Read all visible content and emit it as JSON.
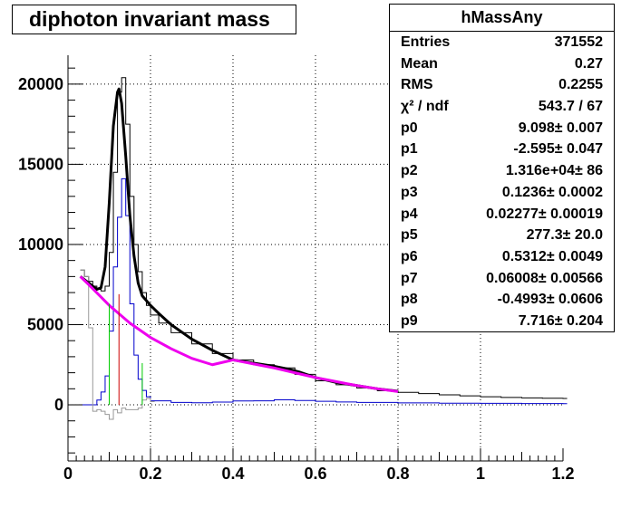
{
  "title": "diphoton invariant mass",
  "stats": {
    "name": "hMassAny",
    "rows": [
      {
        "label": "Entries",
        "value": "371552"
      },
      {
        "label": "Mean",
        "value": "0.27"
      },
      {
        "label": "RMS",
        "value": "0.2255"
      },
      {
        "label": "χ² / ndf",
        "value": "543.7 / 67"
      },
      {
        "label": "p0",
        "value": "9.098± 0.007"
      },
      {
        "label": "p1",
        "value": "-2.595± 0.047"
      },
      {
        "label": "p2",
        "value": "1.316e+04± 86"
      },
      {
        "label": "p3",
        "value": "0.1236± 0.0002"
      },
      {
        "label": "p4",
        "value": "0.02277± 0.00019"
      },
      {
        "label": "p5",
        "value": "277.3± 20.0"
      },
      {
        "label": "p6",
        "value": "0.5312± 0.0049"
      },
      {
        "label": "p7",
        "value": "0.06008± 0.00566"
      },
      {
        "label": "p8",
        "value": "-0.4993± 0.0606"
      },
      {
        "label": "p9",
        "value": "7.716± 0.204"
      }
    ]
  },
  "chart_data": {
    "type": "line",
    "title": "diphoton invariant mass",
    "xlabel": "",
    "ylabel": "",
    "xlim": [
      0,
      1.2
    ],
    "ylim": [
      -3500,
      21800
    ],
    "grid": true,
    "x_ticks": [
      0,
      0.2,
      0.4,
      0.6,
      0.8,
      1,
      1.2
    ],
    "x_tick_labels": [
      "0",
      "0.2",
      "0.4",
      "0.6",
      "0.8",
      "1",
      "1.2"
    ],
    "y_ticks": [
      0,
      5000,
      10000,
      15000,
      20000
    ],
    "y_tick_labels": [
      "0",
      "5000",
      "10000",
      "15000",
      "20000"
    ],
    "series": [
      {
        "kind": "histogram",
        "color": "#000000",
        "x": [
          0.03,
          0.04,
          0.05,
          0.06,
          0.07,
          0.08,
          0.09,
          0.1,
          0.11,
          0.12,
          0.13,
          0.14,
          0.15,
          0.16,
          0.17,
          0.18,
          0.19,
          0.2,
          0.22,
          0.25,
          0.3,
          0.35,
          0.4,
          0.45,
          0.5,
          0.55,
          0.6,
          0.65,
          0.7,
          0.75,
          0.8,
          0.85,
          0.9,
          0.95,
          1.0,
          1.05,
          1.1,
          1.15,
          1.2
        ],
        "y": [
          8400,
          8000,
          7700,
          7400,
          7200,
          7100,
          7400,
          9500,
          14500,
          19500,
          20400,
          17500,
          13000,
          10000,
          8300,
          7000,
          6200,
          5600,
          5100,
          4500,
          3800,
          3200,
          2800,
          2500,
          2300,
          1900,
          1500,
          1250,
          1050,
          880,
          780,
          700,
          620,
          560,
          500,
          460,
          430,
          410,
          400
        ]
      },
      {
        "kind": "histogram",
        "color": "#0000cc",
        "x": [
          0.03,
          0.04,
          0.05,
          0.06,
          0.07,
          0.08,
          0.09,
          0.1,
          0.11,
          0.12,
          0.13,
          0.14,
          0.15,
          0.16,
          0.17,
          0.18,
          0.19,
          0.2,
          0.25,
          0.3,
          0.35,
          0.4,
          0.45,
          0.5,
          0.55,
          0.6,
          0.65,
          0.7,
          0.8,
          0.9,
          1.0,
          1.1,
          1.2
        ],
        "y": [
          0,
          0,
          0,
          0,
          300,
          800,
          1800,
          4600,
          8600,
          11700,
          14100,
          11800,
          6300,
          3100,
          1600,
          900,
          500,
          250,
          150,
          130,
          170,
          240,
          250,
          310,
          270,
          220,
          180,
          150,
          120,
          100,
          90,
          80,
          70
        ]
      },
      {
        "kind": "histogram",
        "color": "#999999",
        "x": [
          0.03,
          0.04,
          0.05,
          0.06,
          0.07,
          0.08,
          0.09,
          0.1,
          0.11,
          0.12,
          0.13,
          0.14,
          0.15,
          0.16,
          0.17,
          0.18,
          0.19,
          0.2
        ],
        "y": [
          8400,
          8000,
          4800,
          -400,
          -300,
          -400,
          -600,
          -900,
          -300,
          -500,
          -200,
          -300,
          -300,
          -300,
          -200,
          300,
          400,
          200
        ]
      },
      {
        "kind": "function",
        "color": "#000000",
        "x": [
          0.03,
          0.05,
          0.07,
          0.08,
          0.09,
          0.1,
          0.11,
          0.12,
          0.1236,
          0.13,
          0.14,
          0.15,
          0.16,
          0.17,
          0.18,
          0.2,
          0.22,
          0.25,
          0.3,
          0.35,
          0.4,
          0.45,
          0.5,
          0.53,
          0.56,
          0.6,
          0.65,
          0.7,
          0.75,
          0.8
        ],
        "y": [
          8000,
          7600,
          7200,
          7300,
          8600,
          12600,
          17400,
          19500,
          19700,
          18800,
          15500,
          11800,
          9300,
          7600,
          6800,
          6200,
          5700,
          5000,
          4100,
          3400,
          2800,
          2600,
          2400,
          2250,
          2050,
          1700,
          1400,
          1200,
          1000,
          850
        ]
      },
      {
        "kind": "function",
        "color": "#ee00ee",
        "x": [
          0.03,
          0.05,
          0.1,
          0.15,
          0.2,
          0.25,
          0.3,
          0.35,
          0.4,
          0.45,
          0.5,
          0.55,
          0.6,
          0.65,
          0.7,
          0.75,
          0.8
        ],
        "y": [
          8000,
          7500,
          6200,
          5100,
          4200,
          3500,
          2900,
          2500,
          2800,
          2550,
          2300,
          2000,
          1700,
          1450,
          1200,
          1000,
          830
        ]
      }
    ],
    "markers": [
      {
        "x": 0.1,
        "y_top": 6300,
        "color": "#00cc00"
      },
      {
        "x": 0.1236,
        "y_top": 6900,
        "color": "#cc0000"
      },
      {
        "x": 0.18,
        "y_top": 2600,
        "color": "#00cc00"
      }
    ]
  }
}
